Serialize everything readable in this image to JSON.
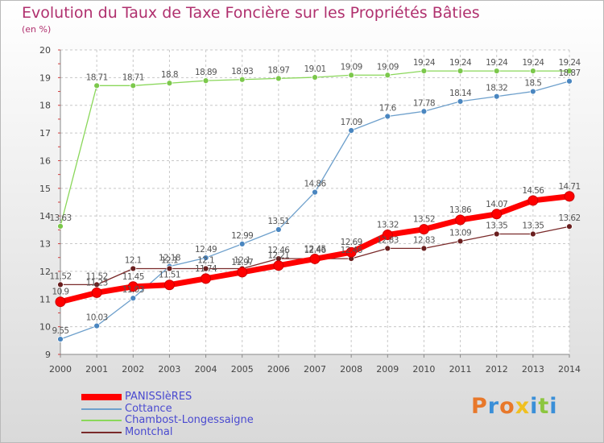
{
  "header": {
    "title": "Evolution du Taux de Taxe Foncière sur les Propriétés Bâties",
    "unit": "(en %)"
  },
  "logo": {
    "text": "Proxiti",
    "colors": [
      "#e8782a",
      "#3a8fd8",
      "#e8782a",
      "#f0c020",
      "#3a8fd8",
      "#8cc63f",
      "#3a8fd8"
    ]
  },
  "chart_data": {
    "type": "line",
    "title": "Evolution du Taux de Taxe Foncière sur les Propriétés Bâties",
    "ylabel": "(en %)",
    "xlabel": "",
    "x": [
      "2000",
      "2001",
      "2002",
      "2003",
      "2004",
      "2005",
      "2006",
      "2007",
      "2008",
      "2009",
      "2010",
      "2011",
      "2012",
      "2013",
      "2014"
    ],
    "ylim": [
      9,
      20
    ],
    "yticks": [
      9,
      10,
      11,
      12,
      13,
      14,
      15,
      16,
      17,
      18,
      19,
      20
    ],
    "grid": true,
    "legend_position": "bottom-left",
    "series": [
      {
        "name": "PANISSIèRES",
        "color": "#ff0000",
        "width": 7,
        "radius": 6,
        "label_color": "#444444",
        "values": [
          10.9,
          11.23,
          11.45,
          11.51,
          11.74,
          11.97,
          12.21,
          12.45,
          12.69,
          13.32,
          13.52,
          13.86,
          14.07,
          14.56,
          14.71
        ],
        "labels": [
          "10.9",
          "11.23",
          "11.45",
          "11.51",
          "11.74",
          "11.97",
          "12.21",
          "12.45",
          "12.69",
          "13.32",
          "13.52",
          "13.86",
          "14.07",
          "14.56",
          "14.71"
        ]
      },
      {
        "name": "Cottance",
        "color": "#6ea0cc",
        "dot": "#4a86c0",
        "width": 1.3,
        "radius": 3.5,
        "label_color": "#444444",
        "values": [
          9.55,
          10.03,
          11.03,
          12.18,
          12.49,
          12.99,
          13.51,
          14.86,
          17.09,
          17.6,
          17.78,
          18.14,
          18.32,
          18.5,
          18.87
        ],
        "labels": [
          "9.55",
          "10.03",
          "11.03",
          "12.18",
          "12.49",
          "12.99",
          "13.51",
          "14.86",
          "17.09",
          "17.6",
          "17.78",
          "18.14",
          "18.32",
          "18.5",
          "18.87"
        ]
      },
      {
        "name": "Chambost-Longessaigne",
        "color": "#8ad75a",
        "dot": "#7cc84c",
        "width": 1.3,
        "radius": 3.5,
        "label_color": "#444444",
        "values": [
          13.63,
          18.71,
          18.71,
          18.8,
          18.89,
          18.93,
          18.97,
          19.01,
          19.09,
          19.09,
          19.24,
          19.24,
          19.24,
          19.24,
          19.24
        ],
        "labels": [
          "13.63",
          "18.71",
          "18.71",
          "18.8",
          "18.89",
          "18.93",
          "18.97",
          "19.01",
          "19.09",
          "19.09",
          "19.24",
          "19.24",
          "19.24",
          "19.24",
          "19.24"
        ]
      },
      {
        "name": "Montchal",
        "color": "#7a2a2a",
        "dot": "#6a1f1f",
        "width": 1.3,
        "radius": 3.5,
        "label_color": "#444444",
        "values": [
          11.52,
          11.52,
          12.1,
          12.1,
          12.1,
          12.1,
          12.46,
          12.46,
          12.46,
          12.83,
          12.83,
          13.09,
          13.35,
          13.35,
          13.62
        ],
        "labels": [
          "11.52",
          "11.52",
          "12.1",
          "12.1",
          "12.1",
          "12.1",
          "12.46",
          "12.46",
          "12.46",
          "12.83",
          "12.83",
          "13.09",
          "13.35",
          "13.35",
          "13.62"
        ]
      }
    ]
  }
}
